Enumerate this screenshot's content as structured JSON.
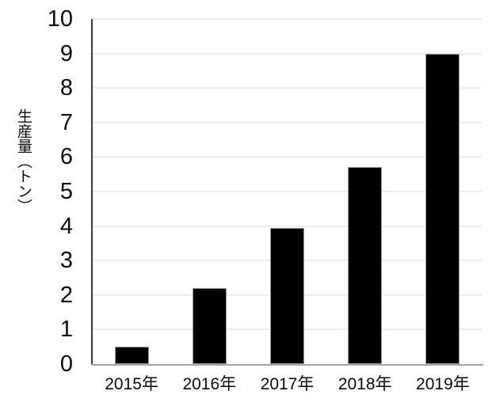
{
  "chart_data": {
    "type": "bar",
    "title": "",
    "categories": [
      "2015年",
      "2016年",
      "2017年",
      "2018年",
      "2019年"
    ],
    "values": [
      0.5,
      2.2,
      3.95,
      5.7,
      9.0
    ],
    "xlabel": "",
    "ylabel": "生産量（トン）",
    "ylim": [
      0,
      10
    ],
    "yticks": [
      0,
      1,
      2,
      3,
      4,
      5,
      6,
      7,
      8,
      9,
      10
    ],
    "grid": true,
    "legend": "none",
    "bar_color": "#000000",
    "bar_border_color": "#9a9a9a",
    "gridline_color": "#ececec",
    "y_axis_line_color": "#3a3a3a",
    "x_axis_line_color": "#a6a6a6",
    "text_color": "#0b0b0b",
    "background_color": "#ffffff"
  }
}
